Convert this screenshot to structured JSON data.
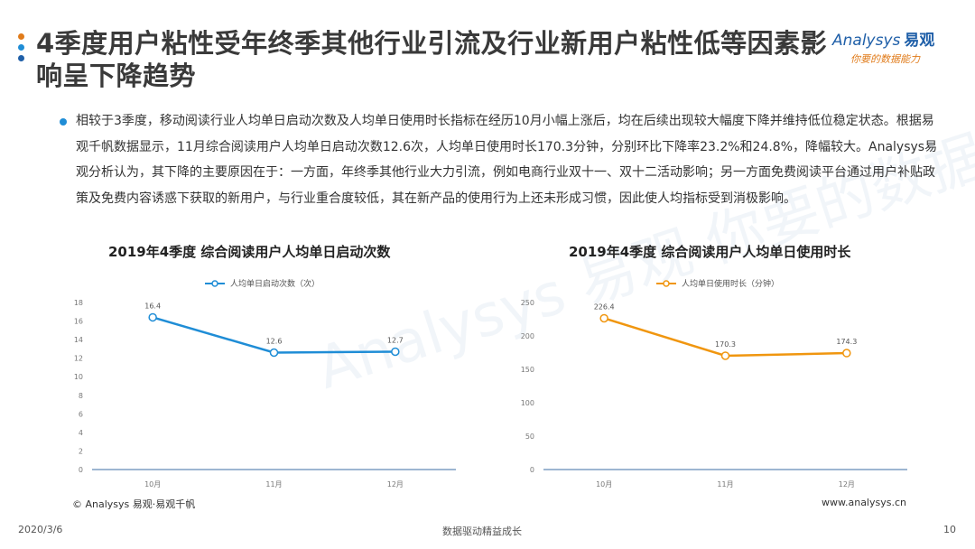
{
  "slide": {
    "title": "4季度用户粘性受年终季其他行业引流及行业新用户粘性低等因素影响呈下降趋势",
    "body": "相较于3季度，移动阅读行业人均单日启动次数及人均单日使用时长指标在经历10月小幅上涨后，均在后续出现较大幅度下降并维持低位稳定状态。根据易观千帆数据显示，11月综合阅读用户人均单日启动次数12.6次，人均单日使用时长170.3分钟，分别环比下降率23.2%和24.8%，降幅较大。Analysys易观分析认为，其下降的主要原因在于：一方面，年终季其他行业大力引流，例如电商行业双十一、双十二活动影响；另一方面免费阅读平台通过用户补贴政策及免费内容诱惑下获取的新用户，与行业重合度较低，其在新产品的使用行为上还未形成习惯，因此使人均指标受到消极影响。",
    "dot_colors": [
      "#e07b1a",
      "#1f8dd6",
      "#1f5fa8"
    ]
  },
  "logo": {
    "brand": "Analysys",
    "brand_cn": "易观",
    "slogan": "你要的数据能力",
    "watermark": "Analysys 易观 你要的数据能力"
  },
  "footer": {
    "source": "© Analysys 易观·易观千帆",
    "website": "www.analysys.cn",
    "date": "2020/3/6",
    "tagline": "数据驱动精益成长",
    "page": "10"
  },
  "chart_data": [
    {
      "type": "line",
      "title": "2019年4季度 综合阅读用户人均单日启动次数",
      "categories": [
        "10月",
        "11月",
        "12月"
      ],
      "series": [
        {
          "name": "人均单日启动次数（次）",
          "values": [
            16.4,
            12.6,
            12.7
          ],
          "color": "#1f8dd6"
        }
      ],
      "ylim": [
        0,
        18
      ],
      "yticks": [
        0,
        2,
        4,
        6,
        8,
        10,
        12,
        14,
        16,
        18
      ],
      "legend": "top-center",
      "grid": false
    },
    {
      "type": "line",
      "title": "2019年4季度 综合阅读用户人均单日使用时长",
      "categories": [
        "10月",
        "11月",
        "12月"
      ],
      "series": [
        {
          "name": "人均单日使用时长（分钟）",
          "values": [
            226.4,
            170.3,
            174.3
          ],
          "color": "#f0960f"
        }
      ],
      "ylim": [
        0,
        250
      ],
      "yticks": [
        0,
        50,
        100,
        150,
        200,
        250
      ],
      "legend": "top-center",
      "grid": false
    }
  ]
}
